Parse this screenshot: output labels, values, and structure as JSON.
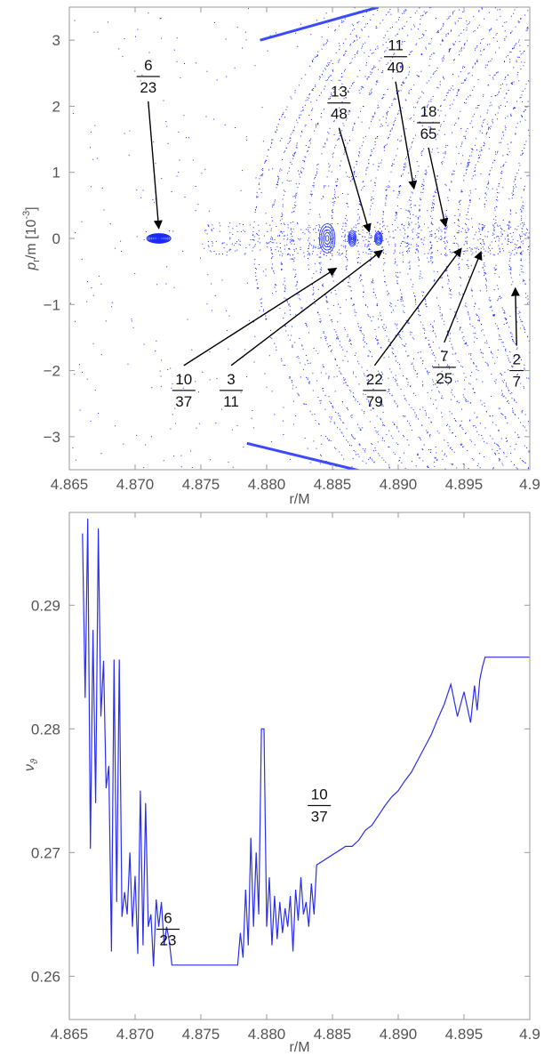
{
  "chart_data": [
    {
      "type": "scatter",
      "xlabel": "r/M",
      "ylabel_main": "p",
      "ylabel_sub": "r",
      "ylabel_rest": "/m [10",
      "ylabel_exp": "-3",
      "ylabel_end": "]",
      "xlim": [
        4.865,
        4.9
      ],
      "ylim": [
        -3.5,
        3.5
      ],
      "grid": false,
      "xticks": [
        "4.865",
        "4.870",
        "4.875",
        "4.880",
        "4.885",
        "4.890",
        "4.895",
        "4.9"
      ],
      "yticks": [
        "-3",
        "-2",
        "-1",
        "0",
        "1",
        "2",
        "3"
      ],
      "colors": {
        "points": "#1a2bff",
        "frame": "#999999",
        "arrows": "#000000"
      },
      "islands": [
        {
          "x": 4.8718,
          "y": 0.0,
          "rx": 0.0009,
          "ry": 0.07,
          "dense": true
        },
        {
          "x": 4.8846,
          "y": 0.0,
          "rx": 0.0006,
          "ry": 0.22,
          "dense": false
        },
        {
          "x": 4.8865,
          "y": 0.0,
          "rx": 0.0003,
          "ry": 0.12,
          "dense": false
        },
        {
          "x": 4.8885,
          "y": 0.0,
          "rx": 0.0003,
          "ry": 0.1,
          "dense": false
        }
      ],
      "annotations": [
        {
          "num": "6",
          "den": "23",
          "label_x": 4.871,
          "label_y": 2.45,
          "tip_x": 4.8718,
          "tip_y": 0.15
        },
        {
          "num": "13",
          "den": "48",
          "label_x": 4.8855,
          "label_y": 2.05,
          "tip_x": 4.8878,
          "tip_y": 0.1
        },
        {
          "num": "11",
          "den": "40",
          "label_x": 4.8898,
          "label_y": 2.75,
          "tip_x": 4.8912,
          "tip_y": 0.75
        },
        {
          "num": "18",
          "den": "65",
          "label_x": 4.8923,
          "label_y": 1.75,
          "tip_x": 4.8936,
          "tip_y": 0.18
        },
        {
          "num": "10",
          "den": "37",
          "label_x": 4.8737,
          "label_y": -2.3,
          "tip_x": 4.8853,
          "tip_y": -0.45
        },
        {
          "num": "3",
          "den": "11",
          "label_x": 4.8773,
          "label_y": -2.3,
          "tip_x": 4.8888,
          "tip_y": -0.18
        },
        {
          "num": "22",
          "den": "79",
          "label_x": 4.8882,
          "label_y": -2.3,
          "tip_x": 4.8948,
          "tip_y": -0.15
        },
        {
          "num": "7",
          "den": "25",
          "label_x": 4.8935,
          "label_y": -1.95,
          "tip_x": 4.8963,
          "tip_y": -0.2
        },
        {
          "num": "2",
          "den": "7",
          "label_x": 4.899,
          "label_y": -2.0,
          "tip_x": 4.8989,
          "tip_y": -0.75
        }
      ]
    },
    {
      "type": "line",
      "xlabel": "r/M",
      "ylabel": "ν",
      "ylabel_sub": "ϑ",
      "xlim": [
        4.865,
        4.9
      ],
      "ylim": [
        0.2565,
        0.2975
      ],
      "grid": false,
      "xticks": [
        "4.865",
        "4.870",
        "4.875",
        "4.880",
        "4.885",
        "4.890",
        "4.895",
        "4.9"
      ],
      "yticks": [
        "0.26",
        "0.27",
        "0.28",
        "0.29"
      ],
      "colors": {
        "line": "#2a2ef0",
        "frame": "#999999"
      },
      "series": [
        {
          "x": [
            4.866,
            4.8662,
            4.8664,
            4.8666,
            4.8668,
            4.867,
            4.8672,
            4.8674,
            4.8676,
            4.8678,
            4.868,
            4.8682,
            4.8684,
            4.8686,
            4.8688,
            4.869,
            4.8692,
            4.8694,
            4.8696,
            4.8698,
            4.87,
            4.8702,
            4.8704,
            4.8706,
            4.8708,
            4.871,
            4.8712,
            4.8714,
            4.8716,
            4.8718,
            4.872,
            4.8722,
            4.8724,
            4.8726,
            4.8728,
            4.873,
            4.8732,
            4.8734,
            4.8736,
            4.8738,
            4.874,
            4.8742,
            4.8744,
            4.8746,
            4.8748,
            4.875,
            4.8752,
            4.8754,
            4.8756,
            4.8758,
            4.876,
            4.8762,
            4.8764,
            4.8766,
            4.8768,
            4.877,
            4.8772,
            4.8774,
            4.8776,
            4.8778,
            4.878,
            4.8782,
            4.8784,
            4.8786,
            4.8788,
            4.879,
            4.8792,
            4.8794,
            4.8796,
            4.8798,
            4.88,
            4.8802,
            4.8804,
            4.8806,
            4.8808,
            4.881,
            4.8812,
            4.8814,
            4.8816,
            4.8818,
            4.882,
            4.8822,
            4.8824,
            4.8826,
            4.8828,
            4.883,
            4.8832,
            4.8834,
            4.8836,
            4.8838,
            4.886,
            4.8862,
            4.8865,
            4.887,
            4.8875,
            4.888,
            4.8885,
            4.889,
            4.8895,
            4.89,
            4.8905,
            4.891,
            4.8915,
            4.892,
            4.8925,
            4.893,
            4.8935,
            4.894,
            4.8945,
            4.895,
            4.8955,
            4.8958,
            4.896,
            4.8962,
            4.8964,
            4.8966,
            4.8968,
            4.897,
            4.8972,
            4.8974,
            4.9
          ],
          "y": [
            0.2958,
            0.2825,
            0.297,
            0.2703,
            0.288,
            0.274,
            0.2962,
            0.281,
            0.2855,
            0.2752,
            0.277,
            0.262,
            0.2856,
            0.266,
            0.2856,
            0.2648,
            0.2668,
            0.265,
            0.27,
            0.264,
            0.2681,
            0.2618,
            0.275,
            0.2625,
            0.274,
            0.264,
            0.265,
            0.2608,
            0.2662,
            0.264,
            0.266,
            0.2625,
            0.264,
            0.2628,
            0.2609,
            0.2609,
            0.2609,
            0.2609,
            0.2609,
            0.2609,
            0.2609,
            0.2609,
            0.2609,
            0.2609,
            0.2609,
            0.2609,
            0.2609,
            0.2609,
            0.2609,
            0.2609,
            0.2609,
            0.2609,
            0.2609,
            0.2609,
            0.2609,
            0.2609,
            0.2609,
            0.2609,
            0.2609,
            0.2609,
            0.2635,
            0.2615,
            0.267,
            0.2625,
            0.2712,
            0.264,
            0.27,
            0.265,
            0.28,
            0.28,
            0.264,
            0.268,
            0.2625,
            0.2665,
            0.263,
            0.266,
            0.2635,
            0.2655,
            0.264,
            0.2665,
            0.262,
            0.267,
            0.2645,
            0.268,
            0.265,
            0.266,
            0.264,
            0.2675,
            0.265,
            0.269,
            0.2705,
            0.2705,
            0.2705,
            0.271,
            0.2718,
            0.2722,
            0.273,
            0.2738,
            0.2745,
            0.275,
            0.2758,
            0.2765,
            0.2775,
            0.2785,
            0.2795,
            0.2808,
            0.282,
            0.2836,
            0.281,
            0.283,
            0.2805,
            0.2835,
            0.2815,
            0.284,
            0.285,
            0.2858,
            0.2858,
            0.2858,
            0.2858,
            0.2858,
            0.2858
          ]
        }
      ],
      "annotations": [
        {
          "num": "6",
          "den": "23",
          "label_x": 4.8725,
          "label_y": 0.2638
        },
        {
          "num": "10",
          "den": "37",
          "label_x": 4.884,
          "label_y": 0.2738
        }
      ]
    }
  ]
}
